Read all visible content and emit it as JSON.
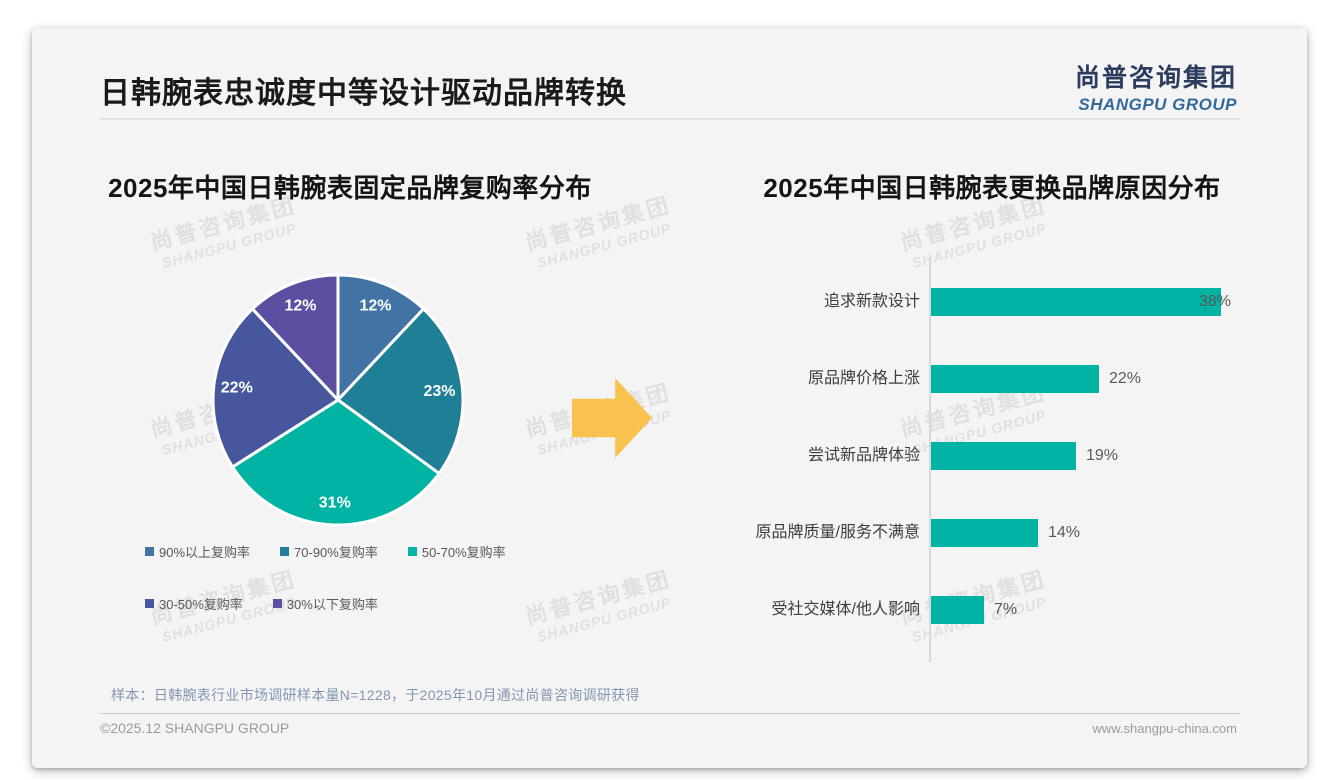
{
  "page": {
    "title": "日韩腕表忠诚度中等设计驱动品牌转换",
    "logo": {
      "cn": "尚普咨询集团",
      "en": "SHANGPU GROUP"
    },
    "watermark": {
      "line1": "尚普咨询集团",
      "line2": "SHANGPU GROUP"
    },
    "footer": {
      "note": "样本：日韩腕表行业市场调研样本量N=1228，于2025年10月通过尚普咨询调研获得",
      "copyright": "©2025.12 SHANGPU GROUP",
      "website": "www.shangpu-china.com"
    }
  },
  "chart_data": [
    {
      "type": "pie",
      "title": "2025年中国日韩腕表固定品牌复购率分布",
      "labels": [
        "90%以上复购率",
        "70-90%复购率",
        "50-70%复购率",
        "30-50%复购率",
        "30%以下复购率"
      ],
      "values": [
        12,
        23,
        31,
        22,
        12
      ],
      "data_labels": [
        "12%",
        "23%",
        "31%",
        "22%",
        "12%"
      ],
      "colors": [
        "#4173a5",
        "#1f7f96",
        "#00b3a3",
        "#47579d",
        "#5a4fa0"
      ],
      "start_angle_deg": 0,
      "direction": "clockwise",
      "legend_position": "bottom"
    },
    {
      "type": "bar",
      "title": "2025年中国日韩腕表更换品牌原因分布",
      "orientation": "horizontal",
      "categories": [
        "追求新款设计",
        "原品牌价格上涨",
        "尝试新品牌体验",
        "原品牌质量/服务不满意",
        "受社交媒体/他人影响"
      ],
      "values": [
        38,
        22,
        19,
        14,
        7
      ],
      "value_labels": [
        "38%",
        "22%",
        "19%",
        "14%",
        "7%"
      ],
      "bar_color": "#00b3a3",
      "xlim": [
        0,
        40
      ],
      "grid": false,
      "legend_position": "none"
    }
  ],
  "accent_colors": {
    "arrow": "#f9c24f",
    "axis": "#d9d9d9"
  }
}
